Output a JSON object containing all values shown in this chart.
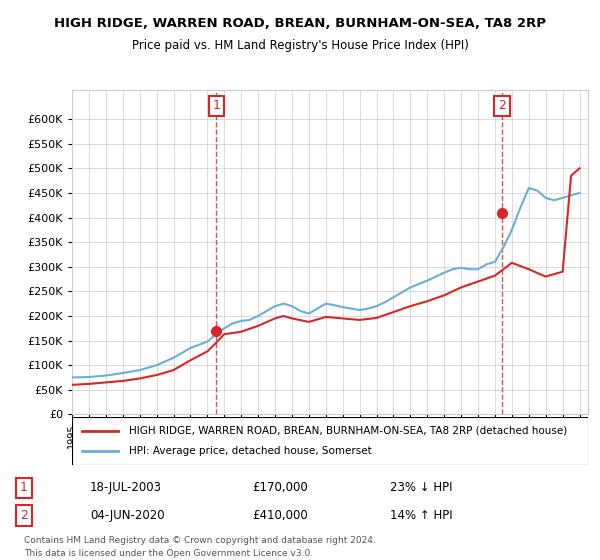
{
  "title": "HIGH RIDGE, WARREN ROAD, BREAN, BURNHAM-ON-SEA, TA8 2RP",
  "subtitle": "Price paid vs. HM Land Registry's House Price Index (HPI)",
  "legend_line1": "HIGH RIDGE, WARREN ROAD, BREAN, BURNHAM-ON-SEA, TA8 2RP (detached house)",
  "legend_line2": "HPI: Average price, detached house, Somerset",
  "annotation1_label": "1",
  "annotation1_date": "18-JUL-2003",
  "annotation1_price": "£170,000",
  "annotation1_hpi": "23% ↓ HPI",
  "annotation2_label": "2",
  "annotation2_date": "04-JUN-2020",
  "annotation2_price": "£410,000",
  "annotation2_hpi": "14% ↑ HPI",
  "footnote": "Contains HM Land Registry data © Crown copyright and database right 2024.\nThis data is licensed under the Open Government Licence v3.0.",
  "hpi_color": "#6baed6",
  "price_color": "#d62728",
  "marker_color_1": "#d62728",
  "marker_color_2": "#d62728",
  "dashed_line_color": "#d62728",
  "annotation_box_color": "#d62728",
  "ylim": [
    0,
    660000
  ],
  "yticks": [
    0,
    50000,
    100000,
    150000,
    200000,
    250000,
    300000,
    350000,
    400000,
    450000,
    500000,
    550000,
    600000
  ],
  "ytick_labels": [
    "£0",
    "£50K",
    "£100K",
    "£150K",
    "£200K",
    "£250K",
    "£300K",
    "£350K",
    "£400K",
    "£450K",
    "£500K",
    "£550K",
    "£600K"
  ],
  "hpi_years": [
    1995,
    1996,
    1997,
    1998,
    1999,
    2000,
    2001,
    2002,
    2003,
    2003.5,
    2004,
    2004.5,
    2005,
    2005.5,
    2006,
    2006.5,
    2007,
    2007.5,
    2008,
    2008.5,
    2009,
    2009.5,
    2010,
    2010.5,
    2011,
    2011.5,
    2012,
    2012.5,
    2013,
    2013.5,
    2014,
    2014.5,
    2015,
    2015.5,
    2016,
    2016.5,
    2017,
    2017.5,
    2018,
    2018.5,
    2019,
    2019.5,
    2020,
    2020.5,
    2021,
    2021.5,
    2022,
    2022.5,
    2023,
    2023.5,
    2024,
    2024.5,
    2025
  ],
  "hpi_values": [
    75000,
    76000,
    79000,
    84000,
    90000,
    100000,
    115000,
    135000,
    148000,
    162000,
    175000,
    185000,
    190000,
    192000,
    200000,
    210000,
    220000,
    225000,
    220000,
    210000,
    205000,
    215000,
    225000,
    222000,
    218000,
    215000,
    212000,
    215000,
    220000,
    228000,
    238000,
    248000,
    258000,
    265000,
    272000,
    280000,
    288000,
    295000,
    298000,
    295000,
    295000,
    305000,
    310000,
    340000,
    375000,
    420000,
    460000,
    455000,
    440000,
    435000,
    440000,
    445000,
    450000
  ],
  "price_years": [
    1995,
    1996,
    1997,
    1998,
    1999,
    2000,
    2001,
    2002,
    2003,
    2003.5,
    2004,
    2005,
    2006,
    2007,
    2007.5,
    2008,
    2009,
    2010,
    2011,
    2012,
    2013,
    2014,
    2015,
    2016,
    2017,
    2018,
    2019,
    2020,
    2020.5,
    2021,
    2022,
    2023,
    2024,
    2024.5,
    2025
  ],
  "price_values": [
    60000,
    62000,
    65000,
    68000,
    73000,
    80000,
    90000,
    110000,
    128000,
    145000,
    163000,
    168000,
    180000,
    195000,
    200000,
    195000,
    188000,
    198000,
    195000,
    192000,
    196000,
    208000,
    220000,
    230000,
    242000,
    258000,
    270000,
    282000,
    295000,
    308000,
    295000,
    280000,
    290000,
    485000,
    500000
  ],
  "sale1_x": 2003.54,
  "sale1_y": 170000,
  "sale2_x": 2020.42,
  "sale2_y": 410000,
  "xmin": 1995,
  "xmax": 2025.5
}
